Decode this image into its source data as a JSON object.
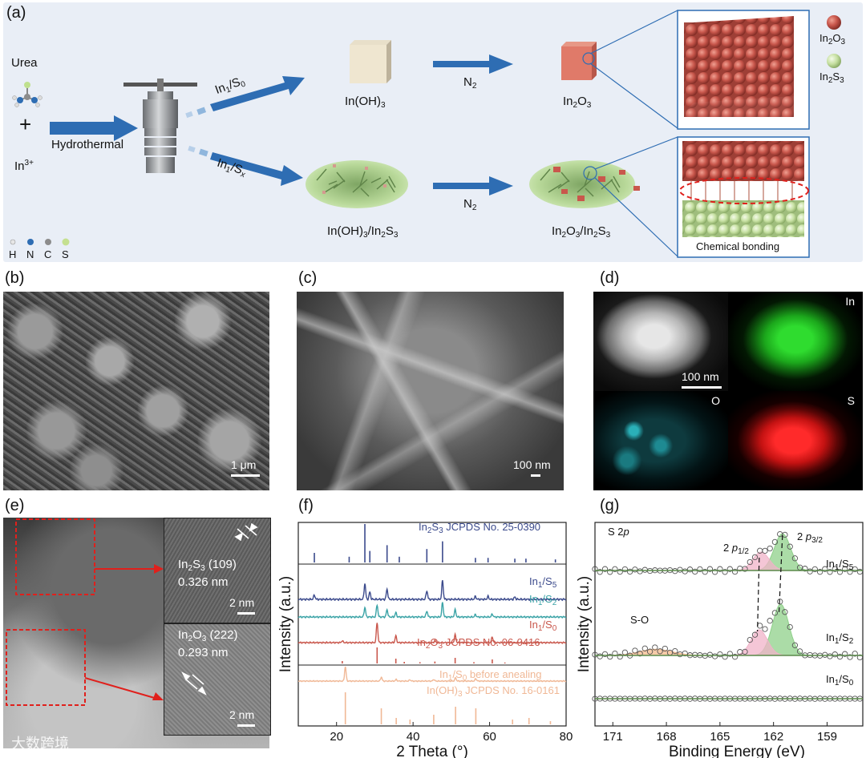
{
  "panels": {
    "a": "(a)",
    "b": "(b)",
    "c": "(c)",
    "d": "(d)",
    "e": "(e)",
    "f": "(f)",
    "g": "(g)"
  },
  "scheme": {
    "urea": "Urea",
    "plus": "+",
    "in3": {
      "base": "In",
      "sup": "3+"
    },
    "hydrothermal": "Hydrothermal",
    "route_top": {
      "base": "In",
      "sub1": "1",
      "mid": "/S",
      "sub2": "0"
    },
    "route_bottom": {
      "base": "In",
      "sub1": "1",
      "mid": "/S",
      "sub2": "x"
    },
    "in_oh3": {
      "base": "In(OH)",
      "sub": "3"
    },
    "n2_top": {
      "base": "N",
      "sub": "2"
    },
    "n2_bottom": {
      "base": "N",
      "sub": "2"
    },
    "in2o3": {
      "a": "In",
      "s1": "2",
      "b": "O",
      "s2": "3"
    },
    "in_oh3_in2s3": {
      "a": "In(OH)",
      "s1": "3",
      "b": "/In",
      "s2": "2",
      "c": "S",
      "s3": "3"
    },
    "in2o3_in2s3": {
      "a": "In",
      "s1": "2",
      "b": "O",
      "s2": "3",
      "c": "/In",
      "s3": "2",
      "d": "S",
      "s4": "3"
    },
    "legend_in2o3": {
      "a": "In",
      "s1": "2",
      "b": "O",
      "s2": "3"
    },
    "legend_in2s3": {
      "a": "In",
      "s1": "2",
      "b": "S",
      "s2": "3"
    },
    "chemical_bonding": "Chemical bonding",
    "atom_legend": [
      "H",
      "N",
      "C",
      "S"
    ],
    "colors": {
      "background": "#e9eef6",
      "arrow": "#2e6db3",
      "in2o3_sphere": "#c9574c",
      "in2s3_sphere": "#c5dfa0"
    }
  },
  "micrographs": {
    "b_scale": "1 μm",
    "c_scale": "100 nm",
    "d_scale": "100 nm",
    "d_labels": {
      "in": "In",
      "o": "O",
      "s": "S"
    },
    "e_top": {
      "phase_a": "In",
      "s1": "2",
      "phase_b": "S",
      "s2": "3",
      "hkl": " (109)",
      "d": "0.326 nm"
    },
    "e_bottom": {
      "phase_a": "In",
      "s1": "2",
      "phase_b": "O",
      "s2": "3",
      "hkl": " (222)",
      "d": "0.293 nm"
    },
    "e_scale_top": "2 nm",
    "e_scale_bottom": "2 nm"
  },
  "chart_data": [
    {
      "panel": "f",
      "type": "line",
      "xlabel": "2 Theta (°)",
      "ylabel": "Intensity (a.u.)",
      "xlim": [
        10,
        80
      ],
      "xticks": [
        20,
        40,
        60,
        80
      ],
      "series": [
        {
          "name": "In2S3 JCPDS No. 25-0390",
          "kind": "reference",
          "color": "#3b4a8c",
          "peaks": [
            [
              14.2,
              0.25
            ],
            [
              23.3,
              0.15
            ],
            [
              27.4,
              1.0
            ],
            [
              28.7,
              0.3
            ],
            [
              33.2,
              0.45
            ],
            [
              36.4,
              0.15
            ],
            [
              43.6,
              0.35
            ],
            [
              47.7,
              0.55
            ],
            [
              56.3,
              0.12
            ],
            [
              59.6,
              0.12
            ],
            [
              66.6,
              0.1
            ],
            [
              69.5,
              0.1
            ],
            [
              77.2,
              0.08
            ]
          ]
        },
        {
          "name": "In1/S5",
          "kind": "pattern",
          "color": "#3b4a8c",
          "peaks": [
            [
              14.2,
              0.15
            ],
            [
              27.4,
              0.55
            ],
            [
              28.7,
              0.25
            ],
            [
              33.2,
              0.35
            ],
            [
              43.6,
              0.3
            ],
            [
              47.7,
              0.65
            ],
            [
              56.3,
              0.1
            ],
            [
              59.6,
              0.1
            ],
            [
              66.6,
              0.08
            ]
          ]
        },
        {
          "name": "In1/S2",
          "kind": "pattern",
          "color": "#3aa3a6",
          "peaks": [
            [
              27.4,
              0.4
            ],
            [
              30.6,
              0.5
            ],
            [
              33.2,
              0.3
            ],
            [
              35.5,
              0.18
            ],
            [
              43.6,
              0.25
            ],
            [
              47.7,
              0.6
            ],
            [
              51.0,
              0.3
            ],
            [
              56.3,
              0.1
            ],
            [
              60.7,
              0.12
            ]
          ]
        },
        {
          "name": "In1/S0",
          "kind": "pattern",
          "color": "#c9574c",
          "peaks": [
            [
              21.5,
              0.08
            ],
            [
              30.6,
              0.9
            ],
            [
              35.5,
              0.3
            ],
            [
              45.7,
              0.08
            ],
            [
              51.0,
              0.35
            ],
            [
              60.7,
              0.25
            ]
          ]
        },
        {
          "name": "In2O3 JCPDS No. 06-0416",
          "kind": "reference",
          "color": "#c9574c",
          "peaks": [
            [
              21.5,
              0.15
            ],
            [
              30.6,
              1.0
            ],
            [
              35.5,
              0.3
            ],
            [
              37.7,
              0.1
            ],
            [
              41.8,
              0.08
            ],
            [
              45.7,
              0.12
            ],
            [
              51.0,
              0.35
            ],
            [
              55.9,
              0.08
            ],
            [
              60.7,
              0.25
            ],
            [
              64.0,
              0.06
            ]
          ]
        },
        {
          "name": "In1/S0 before anealing",
          "kind": "pattern",
          "color": "#f0b896",
          "peaks": [
            [
              22.3,
              0.9
            ],
            [
              31.7,
              0.25
            ],
            [
              35.6,
              0.1
            ],
            [
              39.2,
              0.08
            ],
            [
              45.4,
              0.1
            ],
            [
              51.1,
              0.2
            ],
            [
              56.4,
              0.15
            ]
          ]
        },
        {
          "name": "In(OH)3 JCPDS No. 16-0161",
          "kind": "reference",
          "color": "#f0b896",
          "peaks": [
            [
              22.3,
              1.0
            ],
            [
              31.7,
              0.5
            ],
            [
              35.6,
              0.2
            ],
            [
              39.2,
              0.15
            ],
            [
              45.4,
              0.3
            ],
            [
              51.1,
              0.55
            ],
            [
              56.4,
              0.5
            ],
            [
              66.0,
              0.15
            ],
            [
              70.3,
              0.2
            ],
            [
              75.9,
              0.1
            ]
          ]
        }
      ]
    },
    {
      "panel": "g",
      "type": "line",
      "title": "S 2p",
      "xlabel": "Binding Energy (eV)",
      "ylabel": "Intensity (a.u.)",
      "xlim": [
        172,
        157
      ],
      "xticks": [
        171,
        168,
        165,
        162,
        159
      ],
      "annotations": [
        "2 p1/2",
        "2 p3/2",
        "S-O"
      ],
      "series": [
        {
          "name": "In1/S5",
          "color": "#3b4a8c",
          "peaks": [
            [
              161.5,
              1.0
            ],
            [
              162.7,
              0.5
            ]
          ]
        },
        {
          "name": "In1/S2",
          "color": "#3b4a8c",
          "peaks": [
            [
              161.6,
              1.0
            ],
            [
              162.8,
              0.5
            ],
            [
              168.6,
              0.12
            ]
          ]
        },
        {
          "name": "In1/S0",
          "color": "#3b4a8c",
          "peaks": []
        }
      ]
    }
  ],
  "xrd_labels": {
    "in2s3_ref": {
      "a": "In",
      "s1": "2",
      "b": "S",
      "s2": "3",
      "c": " JCPDS No. 25-0390"
    },
    "s5": {
      "a": "In",
      "s1": "1",
      "b": "/S",
      "s2": "5"
    },
    "s2": {
      "a": "In",
      "s1": "1",
      "b": "/S",
      "s2": "2"
    },
    "s0": {
      "a": "In",
      "s1": "1",
      "b": "/S",
      "s2": "0"
    },
    "in2o3_ref": {
      "a": "In",
      "s1": "2",
      "b": "O",
      "s2": "3",
      "c": " JCPDS No. 06-0416"
    },
    "before": {
      "a": "In",
      "s1": "1",
      "b": "/S",
      "s2": "0",
      "c": " before anealing"
    },
    "inoh3_ref": {
      "a": "In(OH)",
      "s1": "3",
      "c": " JCPDS No. 16-0161"
    }
  },
  "xps_labels": {
    "title": {
      "a": "S 2",
      "i": "p"
    },
    "p12": {
      "a": "2 ",
      "i": "p",
      "s": "1/2"
    },
    "p32": {
      "a": "2 ",
      "i": "p",
      "s": "3/2"
    },
    "so": "S-O",
    "s5": {
      "a": "In",
      "s1": "1",
      "b": "/S",
      "s2": "5"
    },
    "s2": {
      "a": "In",
      "s1": "1",
      "b": "/S",
      "s2": "2"
    },
    "s0": {
      "a": "In",
      "s1": "1",
      "b": "/S",
      "s2": "0"
    }
  },
  "watermark": "大数跨境"
}
